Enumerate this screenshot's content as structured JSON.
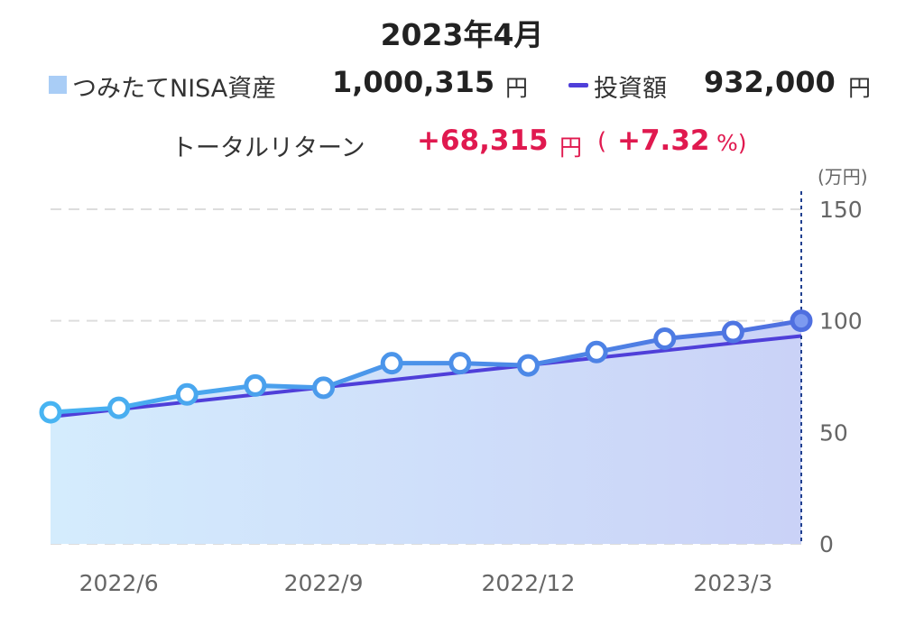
{
  "header": {
    "title": "2023年4月",
    "legend": {
      "area_label": "つみたてNISA資産",
      "area_value": "1,000,315",
      "area_unit": "円",
      "line_label": "投資額",
      "line_value": "932,000",
      "line_unit": "円"
    },
    "total_return": {
      "label": "トータルリターン",
      "amount": "+68,315",
      "amount_unit": "円",
      "paren_open": "(",
      "percent": "+7.32",
      "percent_unit": "%)",
      "paren_close": ""
    }
  },
  "colors": {
    "area_fill_start": "#d4ecfd",
    "area_fill_end": "#cad2f7",
    "asset_line_start": "#48b4f2",
    "asset_line_end": "#4f6fe0",
    "invest_line": "#4f3fd9",
    "positive": "#e0194f",
    "grid": "#dddddd",
    "cursor": "#1f3f8f"
  },
  "chart_data": {
    "type": "area",
    "unit_label": "(万円)",
    "x": [
      "2022/5",
      "2022/6",
      "2022/7",
      "2022/8",
      "2022/9",
      "2022/10",
      "2022/11",
      "2022/12",
      "2023/1",
      "2023/2",
      "2023/3",
      "2023/4"
    ],
    "x_tick_labels": [
      "2022/6",
      "2022/9",
      "2022/12",
      "2023/3"
    ],
    "series": [
      {
        "name": "つみたてNISA資産",
        "values": [
          59,
          61,
          67,
          71,
          70,
          81,
          81,
          80,
          86,
          92,
          95,
          100
        ]
      },
      {
        "name": "投資額",
        "values": [
          57,
          60.3,
          63.6,
          66.9,
          70.2,
          73.5,
          76.8,
          80.1,
          83.4,
          86.7,
          90,
          93.2
        ]
      }
    ],
    "y_ticks": [
      0,
      50,
      100,
      150
    ],
    "ylim": [
      0,
      150
    ],
    "grid": true,
    "y_axis_position": "right"
  }
}
